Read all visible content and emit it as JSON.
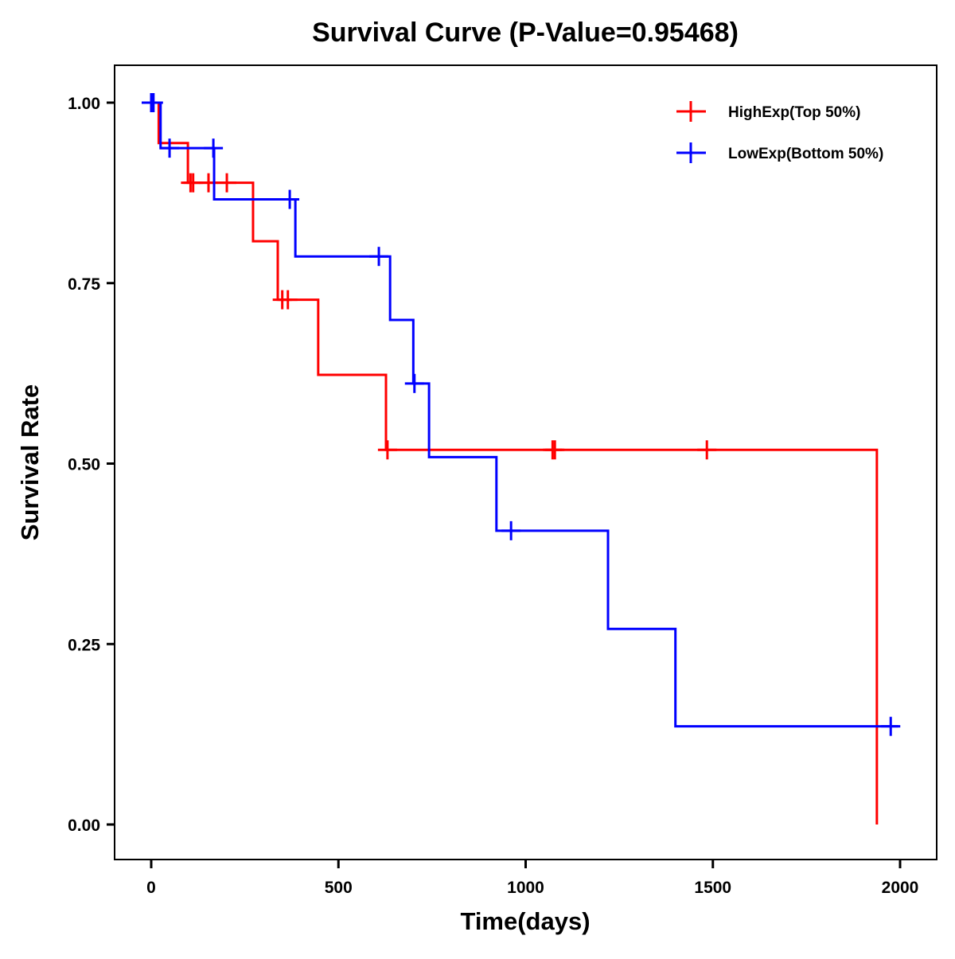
{
  "chart_data": {
    "type": "line",
    "subtype": "kaplan-meier step",
    "title": "Survival Curve (P-Value=0.95468)",
    "xlabel": "Time(days)",
    "ylabel": "Survival Rate",
    "xlim": [
      -90,
      2090
    ],
    "ylim": [
      -0.05,
      1.05
    ],
    "xticks": [
      0,
      500,
      1000,
      1500,
      2000
    ],
    "xtick_labels": [
      "0",
      "500",
      "1000",
      "1500",
      "2000"
    ],
    "yticks": [
      0,
      0.25,
      0.5,
      0.75,
      1.0
    ],
    "ytick_labels": [
      "0.00",
      "0.25",
      "0.50",
      "0.75",
      "1.00"
    ],
    "grid": false,
    "legend_position": "top-right",
    "series": [
      {
        "name": "HighExp(Top 50%)",
        "color": "#ff0000",
        "steps": [
          {
            "t": 0,
            "s": 1.0
          },
          {
            "t": 20,
            "s": 0.944
          },
          {
            "t": 98,
            "s": 0.889
          },
          {
            "t": 272,
            "s": 0.808
          },
          {
            "t": 338,
            "s": 0.727
          },
          {
            "t": 446,
            "s": 0.623
          },
          {
            "t": 627,
            "s": 0.519
          },
          {
            "t": 1938,
            "s": 0.0
          }
        ],
        "end_t": 1938,
        "censored": [
          {
            "t": 105,
            "s": 0.889
          },
          {
            "t": 112,
            "s": 0.889
          },
          {
            "t": 153,
            "s": 0.889
          },
          {
            "t": 202,
            "s": 0.889
          },
          {
            "t": 350,
            "s": 0.727
          },
          {
            "t": 365,
            "s": 0.727
          },
          {
            "t": 631,
            "s": 0.519
          },
          {
            "t": 1072,
            "s": 0.519
          },
          {
            "t": 1078,
            "s": 0.519
          },
          {
            "t": 1484,
            "s": 0.519
          }
        ]
      },
      {
        "name": "LowExp(Bottom 50%)",
        "color": "#0000ff",
        "steps": [
          {
            "t": 0,
            "s": 1.0
          },
          {
            "t": 25,
            "s": 0.937
          },
          {
            "t": 168,
            "s": 0.866
          },
          {
            "t": 385,
            "s": 0.787
          },
          {
            "t": 638,
            "s": 0.699
          },
          {
            "t": 700,
            "s": 0.611
          },
          {
            "t": 742,
            "s": 0.509
          },
          {
            "t": 922,
            "s": 0.407
          },
          {
            "t": 1220,
            "s": 0.271
          },
          {
            "t": 1400,
            "s": 0.136
          }
        ],
        "end_t": 1995,
        "censored": [
          {
            "t": 0,
            "s": 1.0
          },
          {
            "t": 6,
            "s": 1.0
          },
          {
            "t": 49,
            "s": 0.937
          },
          {
            "t": 166,
            "s": 0.937
          },
          {
            "t": 370,
            "s": 0.866
          },
          {
            "t": 608,
            "s": 0.787
          },
          {
            "t": 703,
            "s": 0.611
          },
          {
            "t": 961,
            "s": 0.407
          },
          {
            "t": 1975,
            "s": 0.136
          }
        ]
      }
    ]
  }
}
